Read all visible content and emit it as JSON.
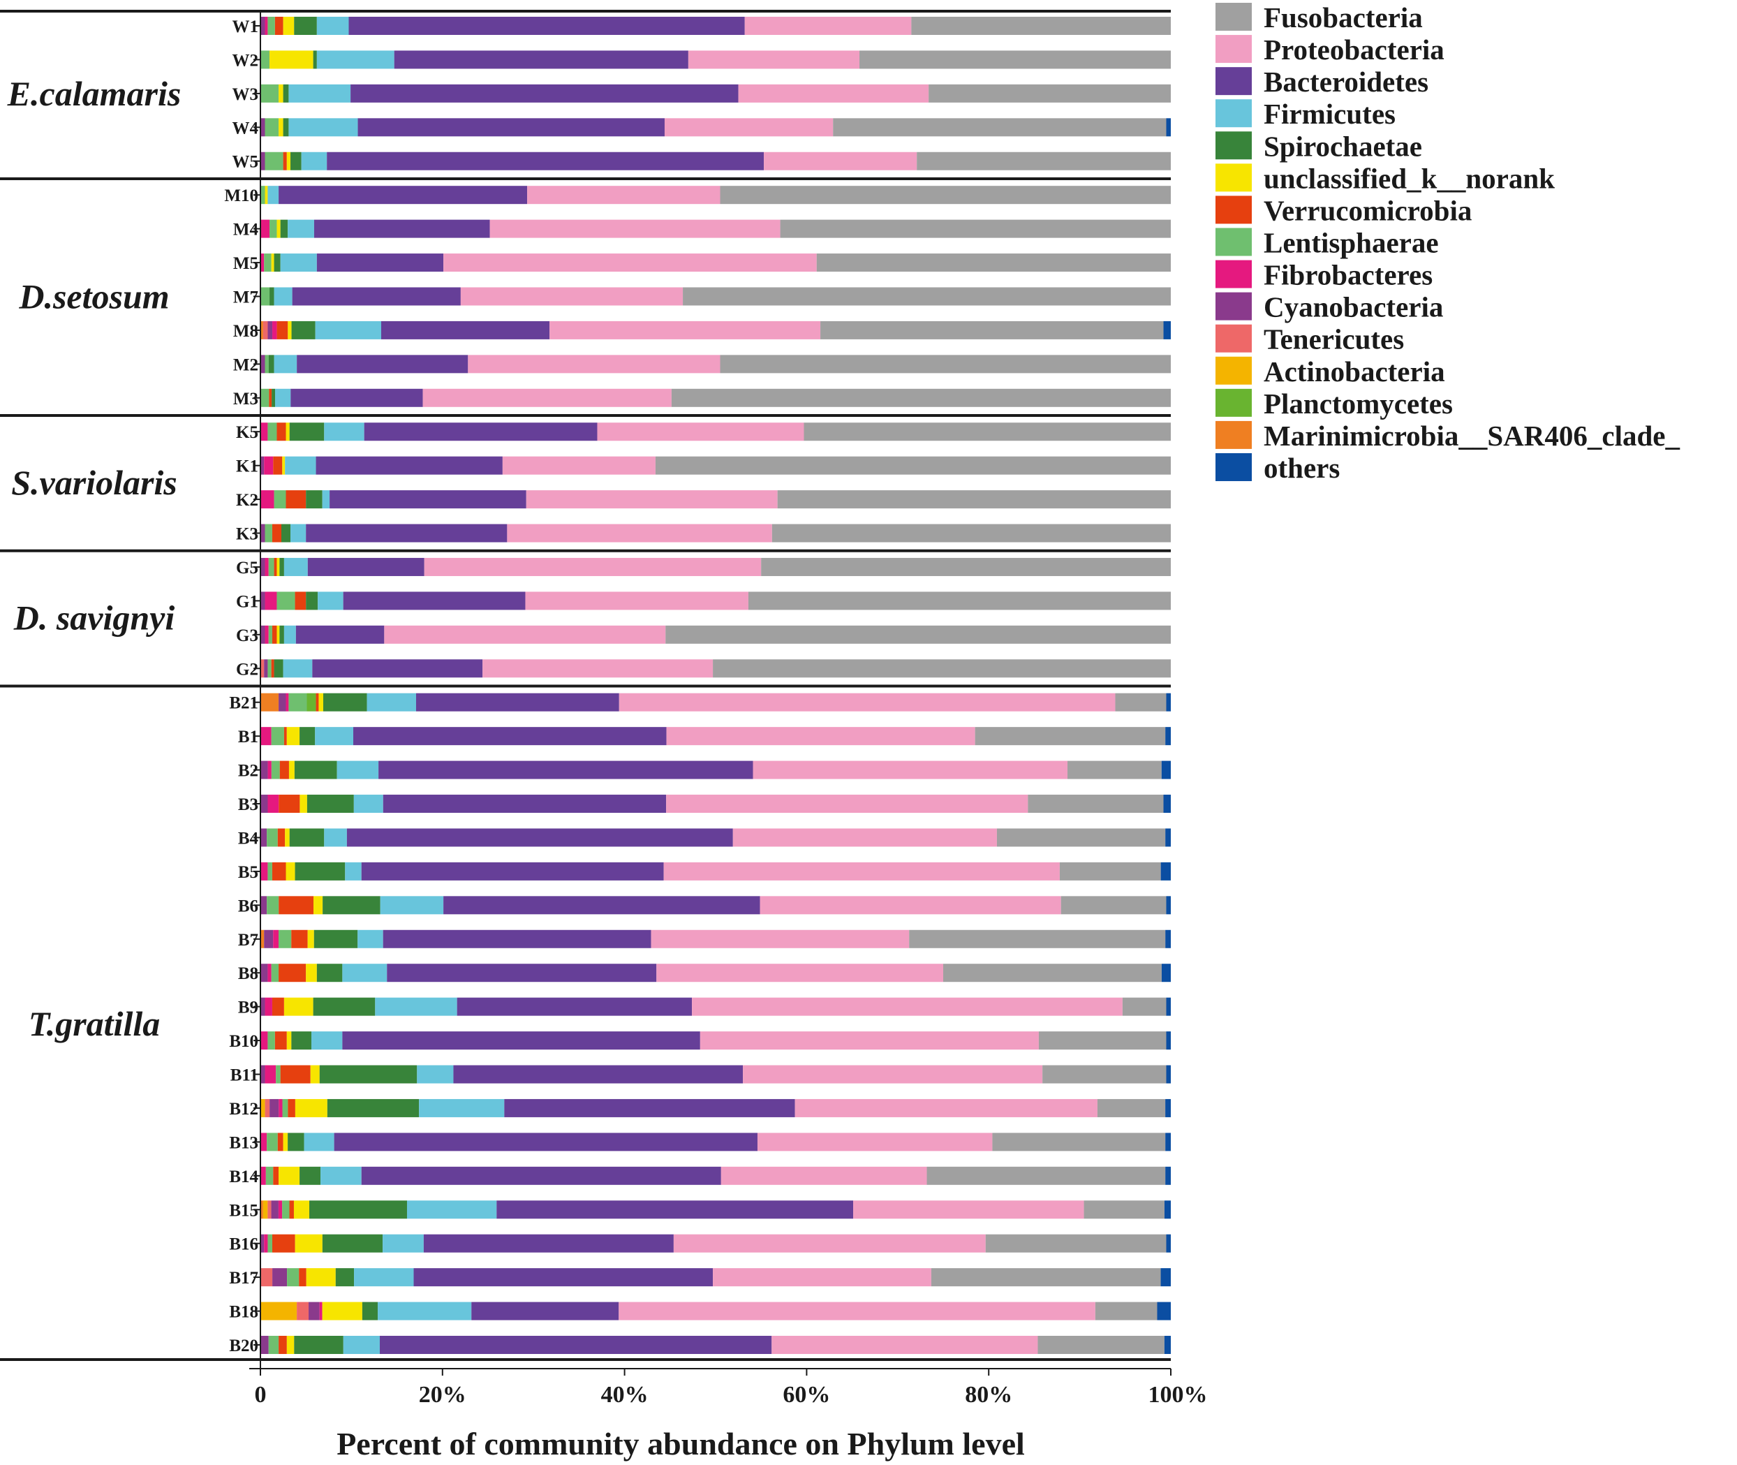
{
  "chart_data": {
    "type": "bar",
    "orientation": "horizontal",
    "stacked": "percent",
    "xlabel": "Percent of community abundance on Phylum level",
    "xlim": [
      0,
      100
    ],
    "xticks": [
      0,
      20,
      40,
      60,
      80,
      100
    ],
    "xtick_labels": [
      "0",
      "20%",
      "40%",
      "60%",
      "80%",
      "100%"
    ],
    "legend_position": "right",
    "series_names": [
      "Fusobacteria",
      "Proteobacteria",
      "Bacteroidetes",
      "Firmicutes",
      "Spirochaetae",
      "unclassified_k__norank",
      "Verrucomicrobia",
      "Lentisphaerae",
      "Fibrobacteres",
      "Cyanobacteria",
      "Tenericutes",
      "Actinobacteria",
      "Planctomycetes",
      "Marinimicrobia__SAR406_clade_",
      "others"
    ],
    "colors": [
      "#a0a0a0",
      "#f19ec2",
      "#663f98",
      "#68c5dc",
      "#38843a",
      "#f7e500",
      "#e6400f",
      "#6fbf6f",
      "#e5197f",
      "#8a3a8c",
      "#ee6868",
      "#f4b400",
      "#69b430",
      "#ef7f22",
      "#0b4ea2"
    ],
    "stack_order": [
      "Marinimicrobia__SAR406_clade_",
      "Actinobacteria",
      "Tenericutes",
      "Cyanobacteria",
      "Fibrobacteres",
      "Lentisphaerae",
      "Planctomycetes",
      "Verrucomicrobia",
      "unclassified_k__norank",
      "Spirochaetae",
      "Firmicutes",
      "Bacteroidetes",
      "Proteobacteria",
      "Fusobacteria",
      "others"
    ],
    "groups": [
      {
        "name": "E.calamaris",
        "samples": [
          {
            "id": "W1",
            "values": {
              "Cyanobacteria": 0.5,
              "Fibrobacteres": 0.3,
              "Lentisphaerae": 0.8,
              "Verrucomicrobia": 0.9,
              "unclassified_k__norank": 1.2,
              "Spirochaetae": 2.5,
              "Firmicutes": 3.5,
              "Bacteroidetes": 43.5,
              "Proteobacteria": 18.3,
              "Fusobacteria": 28.5
            }
          },
          {
            "id": "W2",
            "values": {
              "Lentisphaerae": 1.0,
              "unclassified_k__norank": 4.8,
              "Spirochaetae": 0.4,
              "Firmicutes": 8.5,
              "Bacteroidetes": 32.3,
              "Proteobacteria": 18.8,
              "Fusobacteria": 34.2
            }
          },
          {
            "id": "W3",
            "values": {
              "Lentisphaerae": 2.0,
              "unclassified_k__norank": 0.5,
              "Spirochaetae": 0.6,
              "Firmicutes": 6.8,
              "Bacteroidetes": 42.6,
              "Proteobacteria": 20.9,
              "Fusobacteria": 26.6
            }
          },
          {
            "id": "W4",
            "values": {
              "Cyanobacteria": 0.5,
              "Lentisphaerae": 1.5,
              "unclassified_k__norank": 0.5,
              "Spirochaetae": 0.6,
              "Firmicutes": 7.6,
              "Bacteroidetes": 33.7,
              "Proteobacteria": 18.5,
              "Fusobacteria": 36.6,
              "others": 0.5
            }
          },
          {
            "id": "W5",
            "values": {
              "Cyanobacteria": 0.5,
              "Lentisphaerae": 2.0,
              "Verrucomicrobia": 0.4,
              "unclassified_k__norank": 0.4,
              "Spirochaetae": 1.2,
              "Firmicutes": 2.8,
              "Bacteroidetes": 48.0,
              "Proteobacteria": 16.8,
              "Fusobacteria": 27.9
            }
          }
        ]
      },
      {
        "name": "D.setosum",
        "samples": [
          {
            "id": "M10",
            "values": {
              "Lentisphaerae": 0.5,
              "unclassified_k__norank": 0.3,
              "Firmicutes": 1.2,
              "Bacteroidetes": 27.3,
              "Proteobacteria": 21.2,
              "Fusobacteria": 49.5
            }
          },
          {
            "id": "M4",
            "values": {
              "Fibrobacteres": 1.0,
              "Lentisphaerae": 0.8,
              "unclassified_k__norank": 0.4,
              "Spirochaetae": 0.8,
              "Firmicutes": 2.9,
              "Bacteroidetes": 19.3,
              "Proteobacteria": 31.9,
              "Fusobacteria": 42.9
            }
          },
          {
            "id": "M5",
            "values": {
              "Fibrobacteres": 0.4,
              "Lentisphaerae": 0.8,
              "unclassified_k__norank": 0.3,
              "Spirochaetae": 0.7,
              "Firmicutes": 4.0,
              "Bacteroidetes": 13.9,
              "Proteobacteria": 41.0,
              "Fusobacteria": 38.9
            }
          },
          {
            "id": "M7",
            "values": {
              "Lentisphaerae": 1.0,
              "Spirochaetae": 0.5,
              "Firmicutes": 2.0,
              "Bacteroidetes": 18.5,
              "Proteobacteria": 24.4,
              "Fusobacteria": 53.6
            }
          },
          {
            "id": "M8",
            "values": {
              "Marinimicrobia__SAR406_clade_": 0.3,
              "Tenericutes": 0.5,
              "Cyanobacteria": 0.5,
              "Fibrobacteres": 0.5,
              "Verrucomicrobia": 1.2,
              "unclassified_k__norank": 0.4,
              "Spirochaetae": 2.6,
              "Firmicutes": 7.2,
              "Bacteroidetes": 18.4,
              "Proteobacteria": 29.6,
              "Fusobacteria": 37.5,
              "others": 0.8
            }
          },
          {
            "id": "M2",
            "values": {
              "Cyanobacteria": 0.5,
              "Lentisphaerae": 0.4,
              "Spirochaetae": 0.6,
              "Firmicutes": 2.5,
              "Bacteroidetes": 18.8,
              "Proteobacteria": 27.7,
              "Fusobacteria": 49.5
            }
          },
          {
            "id": "M3",
            "values": {
              "Lentisphaerae": 1.0,
              "Verrucomicrobia": 0.3,
              "Spirochaetae": 0.4,
              "Firmicutes": 1.8,
              "Bacteroidetes": 15.3,
              "Proteobacteria": 28.8,
              "Fusobacteria": 57.8
            }
          }
        ]
      },
      {
        "name": "S.variolaris",
        "samples": [
          {
            "id": "K5",
            "values": {
              "Fibrobacteres": 0.8,
              "Lentisphaerae": 1.0,
              "Verrucomicrobia": 1.0,
              "unclassified_k__norank": 0.4,
              "Spirochaetae": 3.8,
              "Firmicutes": 4.4,
              "Bacteroidetes": 25.6,
              "Proteobacteria": 22.7,
              "Fusobacteria": 40.3
            }
          },
          {
            "id": "K1",
            "values": {
              "Fibrobacteres": 1.0,
              "Verrucomicrobia": 1.0,
              "Cyanobacteria": 0.4,
              "unclassified_k__norank": 0.3,
              "Firmicutes": 3.4,
              "Bacteroidetes": 20.5,
              "Proteobacteria": 16.8,
              "Fusobacteria": 56.6
            }
          },
          {
            "id": "K2",
            "values": {
              "Fibrobacteres": 1.5,
              "Lentisphaerae": 1.3,
              "Verrucomicrobia": 2.2,
              "Spirochaetae": 1.8,
              "Firmicutes": 0.8,
              "Bacteroidetes": 21.6,
              "Proteobacteria": 27.6,
              "Fusobacteria": 43.2
            }
          },
          {
            "id": "K3",
            "values": {
              "Cyanobacteria": 0.5,
              "Lentisphaerae": 0.8,
              "Verrucomicrobia": 1.0,
              "Spirochaetae": 1.0,
              "Firmicutes": 1.7,
              "Bacteroidetes": 22.1,
              "Proteobacteria": 29.1,
              "Fusobacteria": 43.8
            }
          }
        ]
      },
      {
        "name": "D. savignyi",
        "samples": [
          {
            "id": "G5",
            "values": {
              "Cyanobacteria": 0.5,
              "Fibrobacteres": 0.4,
              "Lentisphaerae": 0.6,
              "Verrucomicrobia": 0.3,
              "unclassified_k__norank": 0.3,
              "Spirochaetae": 0.5,
              "Firmicutes": 2.6,
              "Bacteroidetes": 12.8,
              "Proteobacteria": 37.0,
              "Fusobacteria": 45.0
            }
          },
          {
            "id": "G1",
            "values": {
              "Cyanobacteria": 0.5,
              "Fibrobacteres": 1.3,
              "Lentisphaerae": 2.0,
              "Verrucomicrobia": 1.2,
              "Spirochaetae": 1.3,
              "Firmicutes": 2.8,
              "Bacteroidetes": 20.0,
              "Proteobacteria": 24.5,
              "Fusobacteria": 46.4
            }
          },
          {
            "id": "G3",
            "values": {
              "Cyanobacteria": 0.5,
              "Fibrobacteres": 0.4,
              "Lentisphaerae": 0.4,
              "Verrucomicrobia": 0.5,
              "unclassified_k__norank": 0.3,
              "Spirochaetae": 0.5,
              "Firmicutes": 1.3,
              "Bacteroidetes": 9.7,
              "Proteobacteria": 30.9,
              "Fusobacteria": 55.5
            }
          },
          {
            "id": "G2",
            "values": {
              "Tenericutes": 0.4,
              "Cyanobacteria": 0.4,
              "Lentisphaerae": 0.4,
              "Verrucomicrobia": 0.3,
              "Spirochaetae": 1.0,
              "Firmicutes": 3.2,
              "Bacteroidetes": 18.7,
              "Proteobacteria": 25.3,
              "Fusobacteria": 50.3
            }
          }
        ]
      },
      {
        "name": "T.gratilla",
        "samples": [
          {
            "id": "B21",
            "values": {
              "Marinimicrobia__SAR406_clade_": 2.0,
              "Lentisphaerae": 2.0,
              "Cyanobacteria": 0.8,
              "Fibrobacteres": 0.3,
              "Planctomycetes": 1.0,
              "Verrucomicrobia": 0.3,
              "unclassified_k__norank": 0.5,
              "Spirochaetae": 4.8,
              "Firmicutes": 5.4,
              "Bacteroidetes": 22.3,
              "Proteobacteria": 54.5,
              "Fusobacteria": 5.6,
              "others": 0.5
            }
          },
          {
            "id": "B1",
            "values": {
              "Fibrobacteres": 1.2,
              "Lentisphaerae": 1.4,
              "Verrucomicrobia": 0.3,
              "unclassified_k__norank": 1.4,
              "Spirochaetae": 1.7,
              "Firmicutes": 4.2,
              "Bacteroidetes": 34.4,
              "Proteobacteria": 33.9,
              "Fusobacteria": 20.9,
              "others": 0.6
            }
          },
          {
            "id": "B2",
            "values": {
              "Cyanobacteria": 0.8,
              "Fibrobacteres": 0.4,
              "Lentisphaerae": 0.9,
              "Verrucomicrobia": 1.0,
              "unclassified_k__norank": 0.6,
              "Spirochaetae": 4.6,
              "Firmicutes": 4.5,
              "Bacteroidetes": 40.6,
              "Proteobacteria": 34.1,
              "Fusobacteria": 10.2,
              "others": 1.0
            }
          },
          {
            "id": "B3",
            "values": {
              "Cyanobacteria": 0.8,
              "Fibrobacteres": 1.2,
              "Verrucomicrobia": 2.3,
              "unclassified_k__norank": 0.8,
              "Spirochaetae": 5.1,
              "Firmicutes": 3.2,
              "Bacteroidetes": 30.9,
              "Proteobacteria": 39.5,
              "Fusobacteria": 14.8,
              "others": 0.8
            }
          },
          {
            "id": "B4",
            "values": {
              "Cyanobacteria": 0.7,
              "Lentisphaerae": 1.2,
              "Verrucomicrobia": 0.8,
              "unclassified_k__norank": 0.5,
              "Spirochaetae": 3.8,
              "Firmicutes": 2.5,
              "Bacteroidetes": 42.4,
              "Proteobacteria": 29.0,
              "Fusobacteria": 18.5,
              "others": 0.6
            }
          },
          {
            "id": "B5",
            "values": {
              "Fibrobacteres": 0.8,
              "Lentisphaerae": 0.5,
              "Verrucomicrobia": 1.5,
              "unclassified_k__norank": 1.0,
              "Spirochaetae": 5.5,
              "Firmicutes": 1.8,
              "Bacteroidetes": 33.2,
              "Proteobacteria": 43.5,
              "Fusobacteria": 11.1,
              "others": 1.1
            }
          },
          {
            "id": "B6",
            "values": {
              "Cyanobacteria": 0.7,
              "Lentisphaerae": 1.3,
              "Verrucomicrobia": 3.8,
              "unclassified_k__norank": 1.0,
              "Spirochaetae": 6.3,
              "Firmicutes": 6.9,
              "Bacteroidetes": 34.6,
              "Proteobacteria": 32.9,
              "Fusobacteria": 11.5,
              "others": 0.5
            }
          },
          {
            "id": "B7",
            "values": {
              "Marinimicrobia__SAR406_clade_": 0.4,
              "Cyanobacteria": 1.0,
              "Fibrobacteres": 0.6,
              "Lentisphaerae": 1.4,
              "Verrucomicrobia": 1.8,
              "unclassified_k__norank": 0.7,
              "Spirochaetae": 4.8,
              "Firmicutes": 2.8,
              "Bacteroidetes": 29.5,
              "Proteobacteria": 28.4,
              "Fusobacteria": 28.2,
              "others": 0.6
            }
          },
          {
            "id": "B8",
            "values": {
              "Cyanobacteria": 0.8,
              "Fibrobacteres": 0.4,
              "Lentisphaerae": 0.8,
              "Verrucomicrobia": 3.0,
              "unclassified_k__norank": 1.2,
              "Spirochaetae": 2.8,
              "Firmicutes": 4.9,
              "Bacteroidetes": 29.6,
              "Proteobacteria": 31.5,
              "Fusobacteria": 24.0,
              "others": 1.0
            }
          },
          {
            "id": "B9",
            "values": {
              "Cyanobacteria": 0.5,
              "Fibrobacteres": 0.8,
              "Verrucomicrobia": 1.3,
              "unclassified_k__norank": 3.2,
              "Spirochaetae": 6.8,
              "Firmicutes": 9.0,
              "Bacteroidetes": 25.8,
              "Proteobacteria": 47.3,
              "Fusobacteria": 4.8,
              "others": 0.5
            }
          },
          {
            "id": "B10",
            "values": {
              "Fibrobacteres": 0.8,
              "Lentisphaerae": 0.8,
              "Verrucomicrobia": 1.3,
              "unclassified_k__norank": 0.5,
              "Spirochaetae": 2.2,
              "Firmicutes": 3.4,
              "Bacteroidetes": 39.3,
              "Proteobacteria": 37.2,
              "Fusobacteria": 14.0,
              "others": 0.5
            }
          },
          {
            "id": "B11",
            "values": {
              "Cyanobacteria": 0.5,
              "Fibrobacteres": 1.2,
              "Lentisphaerae": 0.5,
              "Verrucomicrobia": 3.3,
              "unclassified_k__norank": 1.0,
              "Spirochaetae": 10.7,
              "Firmicutes": 4.0,
              "Bacteroidetes": 31.8,
              "Proteobacteria": 32.9,
              "Fusobacteria": 13.6,
              "others": 0.5
            }
          },
          {
            "id": "B12",
            "values": {
              "Actinobacteria": 0.5,
              "Tenericutes": 0.5,
              "Lentisphaerae": 0.6,
              "Cyanobacteria": 1.0,
              "Fibrobacteres": 0.4,
              "Verrucomicrobia": 0.8,
              "unclassified_k__norank": 3.5,
              "Spirochaetae": 10.0,
              "Firmicutes": 9.3,
              "Bacteroidetes": 31.7,
              "Proteobacteria": 33.0,
              "Fusobacteria": 7.4,
              "others": 0.6
            }
          },
          {
            "id": "B13",
            "values": {
              "Fibrobacteres": 0.7,
              "Lentisphaerae": 1.2,
              "Verrucomicrobia": 0.6,
              "unclassified_k__norank": 0.5,
              "Spirochaetae": 1.8,
              "Firmicutes": 3.3,
              "Bacteroidetes": 46.5,
              "Proteobacteria": 25.8,
              "Fusobacteria": 19.0,
              "others": 0.6
            }
          },
          {
            "id": "B14",
            "values": {
              "Fibrobacteres": 0.6,
              "Lentisphaerae": 0.8,
              "Verrucomicrobia": 0.6,
              "unclassified_k__norank": 2.3,
              "Spirochaetae": 2.3,
              "Firmicutes": 4.5,
              "Bacteroidetes": 39.5,
              "Proteobacteria": 22.6,
              "Fusobacteria": 26.2,
              "others": 0.6
            }
          },
          {
            "id": "B15",
            "values": {
              "Marinimicrobia__SAR406_clade_": 0.3,
              "Actinobacteria": 0.5,
              "Tenericutes": 0.4,
              "Cyanobacteria": 0.8,
              "Fibrobacteres": 0.4,
              "Lentisphaerae": 0.8,
              "Verrucomicrobia": 0.5,
              "unclassified_k__norank": 1.7,
              "Spirochaetae": 10.8,
              "Firmicutes": 9.9,
              "Bacteroidetes": 39.4,
              "Proteobacteria": 25.5,
              "Fusobacteria": 8.9,
              "others": 0.7
            }
          },
          {
            "id": "B16",
            "values": {
              "Fibrobacteres": 0.4,
              "Cyanobacteria": 0.4,
              "Lentisphaerae": 0.5,
              "Verrucomicrobia": 2.5,
              "unclassified_k__norank": 3.0,
              "Spirochaetae": 6.6,
              "Firmicutes": 4.5,
              "Bacteroidetes": 27.4,
              "Proteobacteria": 34.2,
              "Fusobacteria": 19.8,
              "others": 0.5
            }
          },
          {
            "id": "B17",
            "values": {
              "Tenericutes": 1.3,
              "Cyanobacteria": 1.6,
              "Lentisphaerae": 1.3,
              "Verrucomicrobia": 0.8,
              "unclassified_k__norank": 3.2,
              "Spirochaetae": 2.0,
              "Firmicutes": 6.5,
              "Bacteroidetes": 32.6,
              "Proteobacteria": 23.8,
              "Fusobacteria": 25.0,
              "others": 1.1
            }
          },
          {
            "id": "B18",
            "values": {
              "Actinobacteria": 4.0,
              "Tenericutes": 1.3,
              "Cyanobacteria": 1.2,
              "Fibrobacteres": 0.3,
              "unclassified_k__norank": 4.4,
              "Spirochaetae": 1.7,
              "Firmicutes": 10.3,
              "Bacteroidetes": 16.2,
              "Proteobacteria": 52.4,
              "Fusobacteria": 6.8,
              "others": 1.5
            }
          },
          {
            "id": "B20",
            "values": {
              "Cyanobacteria": 0.9,
              "Lentisphaerae": 1.1,
              "Verrucomicrobia": 0.9,
              "unclassified_k__norank": 0.8,
              "Spirochaetae": 5.4,
              "Firmicutes": 4.0,
              "Bacteroidetes": 43.0,
              "Proteobacteria": 29.2,
              "Fusobacteria": 13.9,
              "others": 0.7
            }
          }
        ]
      }
    ]
  }
}
